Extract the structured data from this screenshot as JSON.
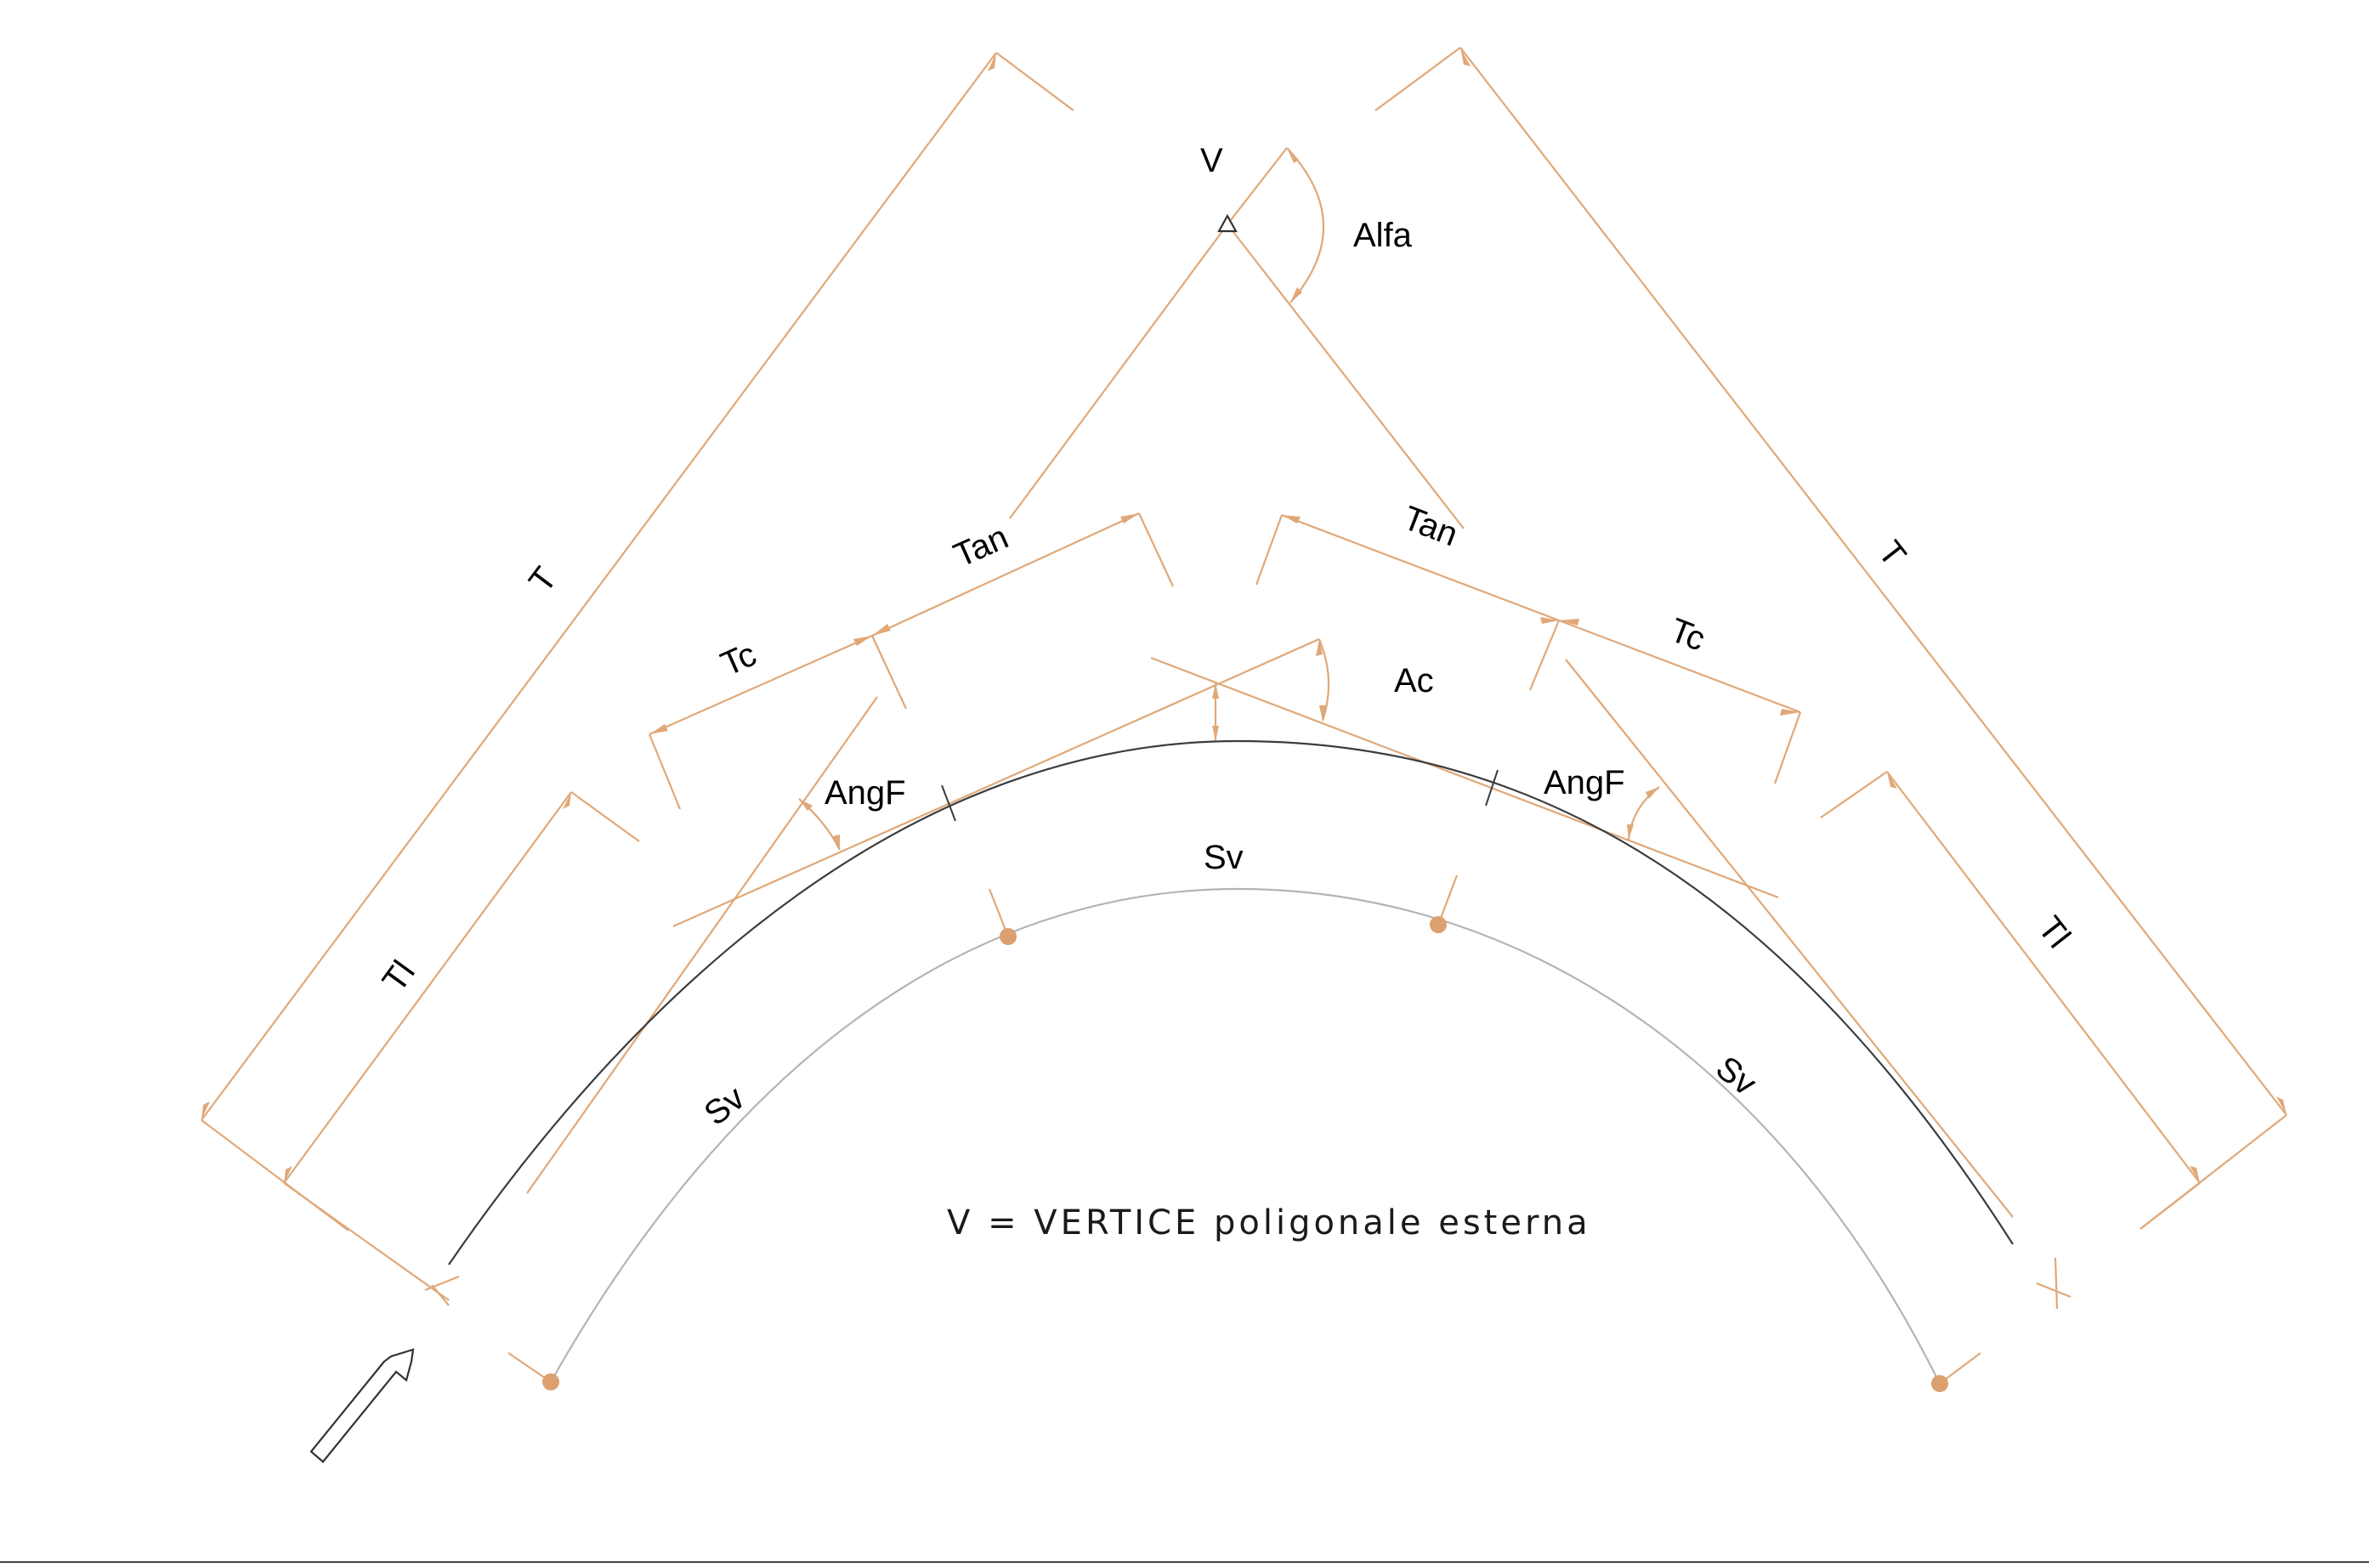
{
  "labels": {
    "vertex": "V",
    "alfa": "Alfa",
    "tan_left": "Tan",
    "tan_right": "Tan",
    "t_left": "T",
    "t_right": "T",
    "tc_left": "Tc",
    "tc_right": "Tc",
    "ac": "Ac",
    "angf_left": "AngF",
    "angf_right": "AngF",
    "tl_left": "Tl",
    "tl_right": "Tl",
    "sv_top": "Sv",
    "sv_left": "Sv",
    "sv_right": "Sv"
  },
  "note": "V = VERTICE poligonale esterna",
  "colors": {
    "dimension": "#e0a878",
    "main_curve": "#3c3c3c",
    "offset_curve": "#b4b4b4",
    "node": "#dba06e"
  },
  "icons": {
    "vertex_marker": "triangle-icon",
    "direction": "arrow-up-right-icon"
  }
}
